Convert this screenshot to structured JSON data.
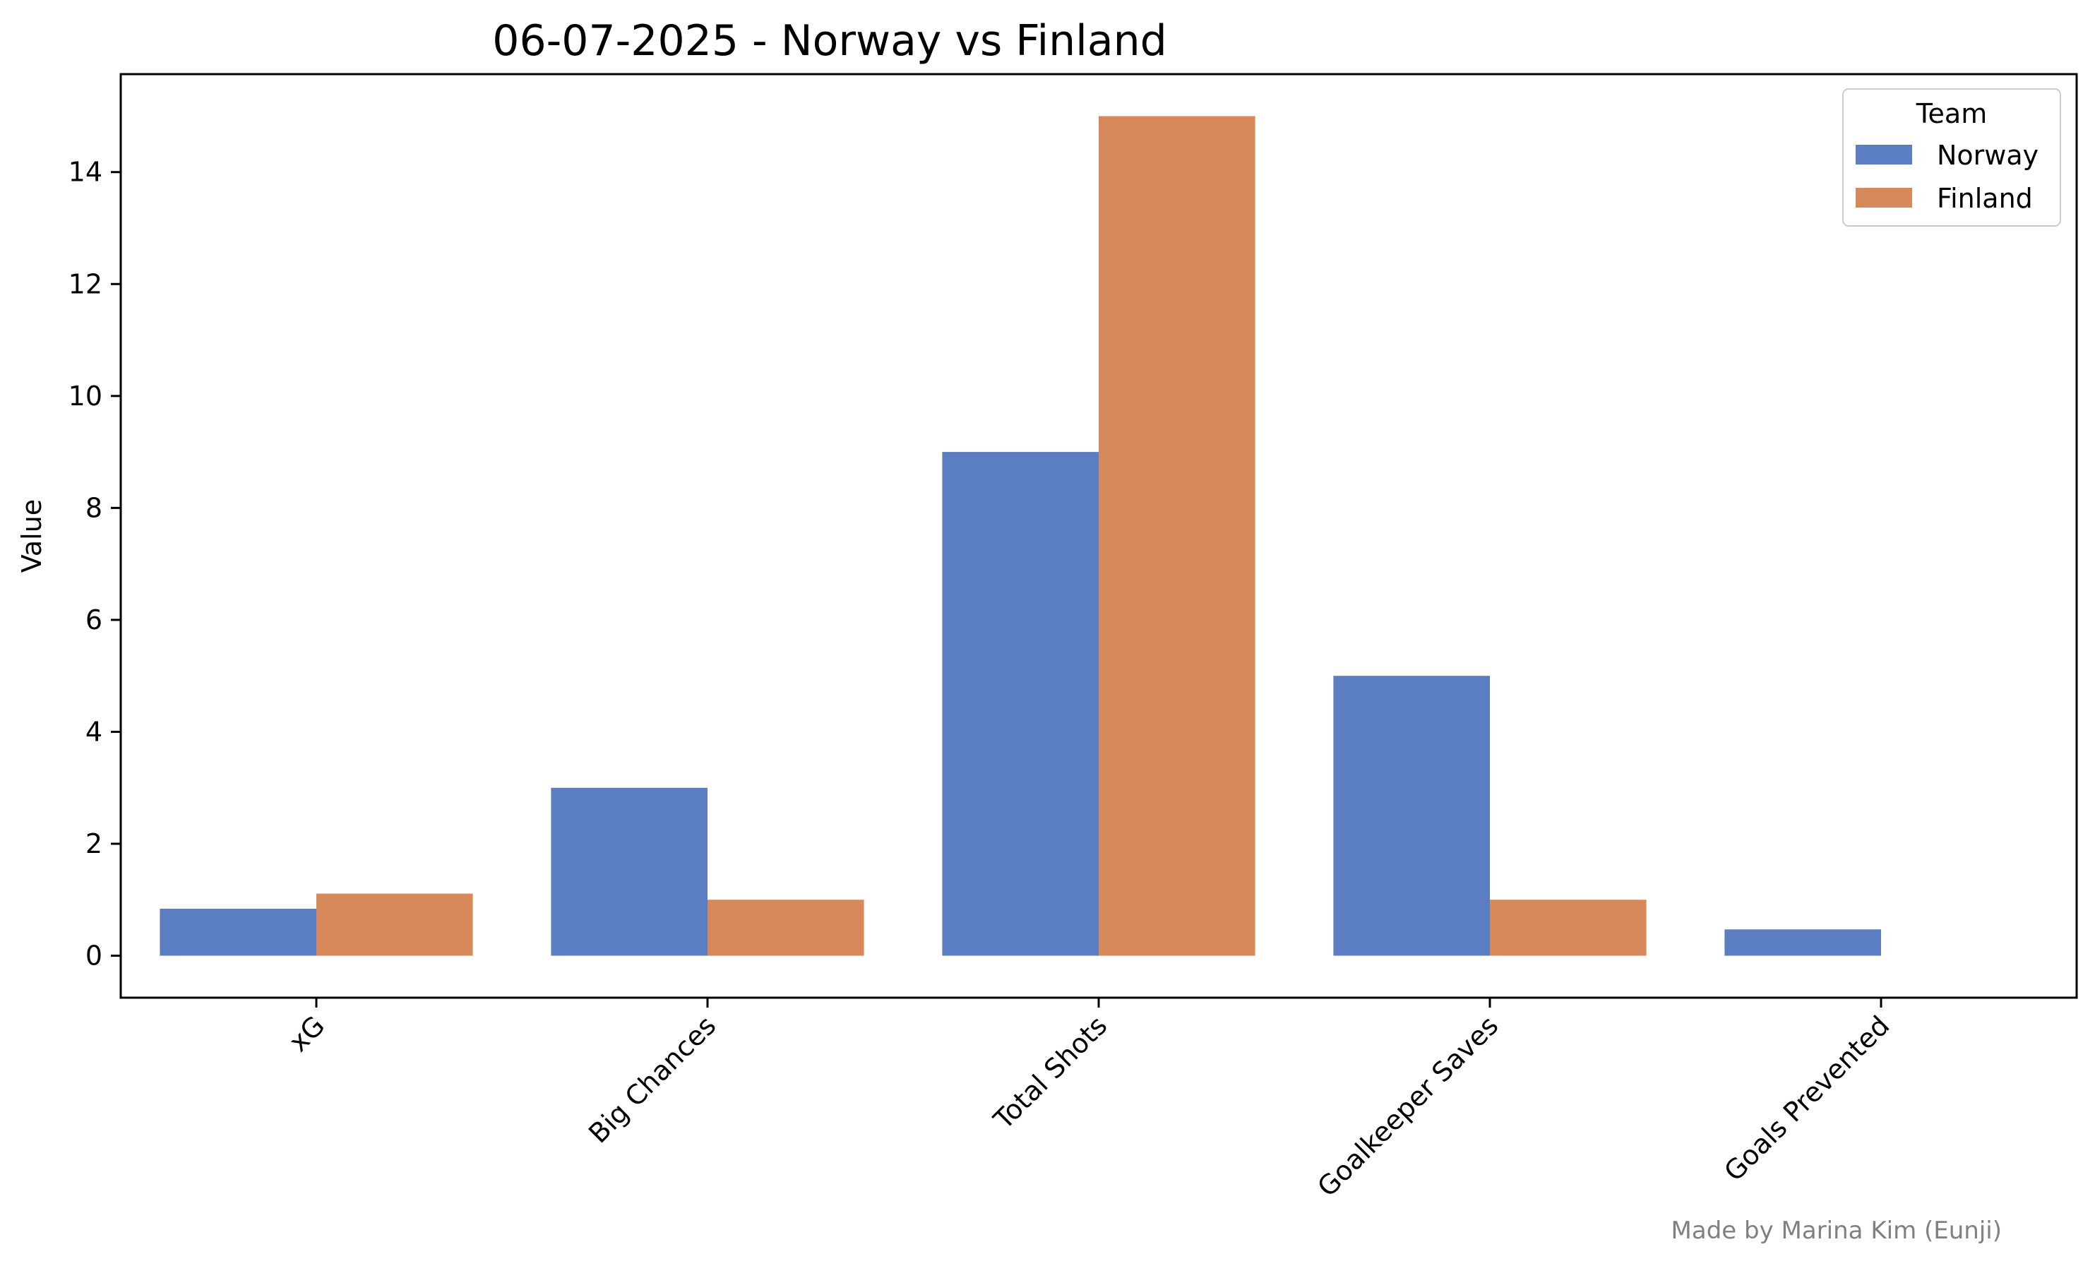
{
  "chart_data": {
    "type": "bar",
    "title": "06-07-2025 - Norway vs Finland",
    "xlabel": "",
    "ylabel": "Value",
    "categories": [
      "xG",
      "Big Chances",
      "Total Shots",
      "Goalkeeper Saves",
      "Goals Prevented"
    ],
    "series": [
      {
        "name": "Norway",
        "color": "#5b7dc1",
        "values": [
          0.84,
          3,
          9,
          5,
          0.47
        ]
      },
      {
        "name": "Finland",
        "color": "#d8895c",
        "values": [
          1.11,
          1,
          15,
          1,
          0
        ]
      }
    ],
    "ylim": [
      -0.75,
      15.75
    ],
    "yticks": [
      0,
      2,
      4,
      6,
      8,
      10,
      12,
      14
    ],
    "grid": false,
    "legend": {
      "title": "Team",
      "position": "top-right"
    },
    "credit": "Made by Marina Kim (Eunji)"
  }
}
